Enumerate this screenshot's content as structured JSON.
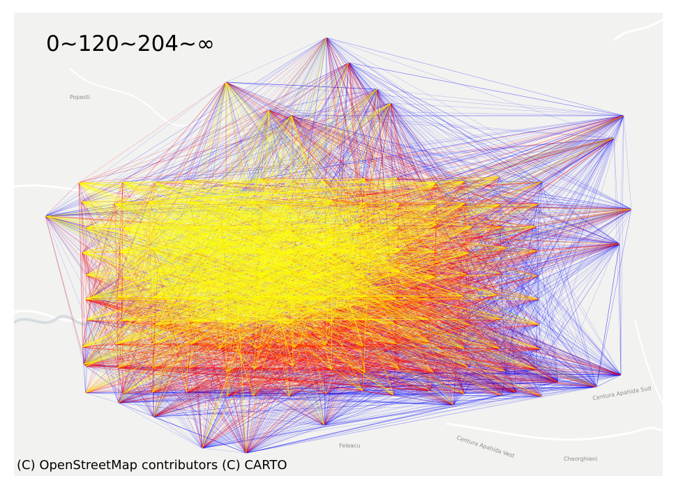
{
  "map": {
    "title": "0~120~204~∞",
    "attribution": "(C) OpenStreetMap contributors (C) CARTO",
    "place_labels": [
      "Popesti",
      "Feleacu",
      "Cheorghieni",
      "Centura Apahida Vest",
      "Centura Apahida Sud"
    ],
    "edge_colors": {
      "short": "#ffff00",
      "medium": "#ff0000",
      "long": "#0000ff"
    },
    "basemap_style": "light-gray"
  }
}
